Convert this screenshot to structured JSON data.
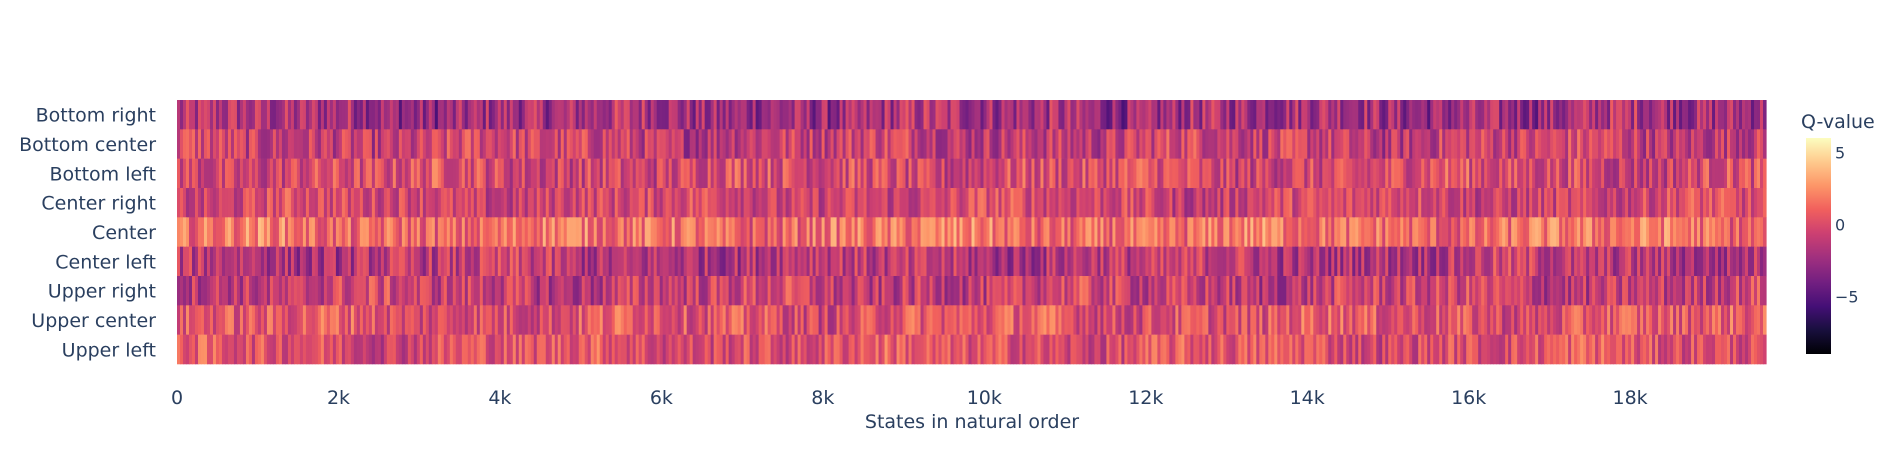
{
  "chart_data": {
    "type": "heatmap",
    "title": "",
    "xlabel": "States in natural order",
    "ylabel": "",
    "xlim": [
      0,
      19683
    ],
    "x_ticks": [
      {
        "value": 0,
        "label": "0"
      },
      {
        "value": 2000,
        "label": "2k"
      },
      {
        "value": 4000,
        "label": "4k"
      },
      {
        "value": 6000,
        "label": "6k"
      },
      {
        "value": 8000,
        "label": "8k"
      },
      {
        "value": 10000,
        "label": "10k"
      },
      {
        "value": 12000,
        "label": "12k"
      },
      {
        "value": 14000,
        "label": "14k"
      },
      {
        "value": 16000,
        "label": "16k"
      },
      {
        "value": 18000,
        "label": "18k"
      }
    ],
    "rows": [
      "Upper left",
      "Upper center",
      "Upper right",
      "Center left",
      "Center",
      "Center right",
      "Bottom left",
      "Bottom center",
      "Bottom right"
    ],
    "colorbar": {
      "title": "Q-value",
      "min": -9,
      "max": 6,
      "ticks": [
        {
          "value": 5,
          "label": "5"
        },
        {
          "value": 0,
          "label": "0"
        },
        {
          "value": -5,
          "label": "−5"
        }
      ],
      "colorscale": "magma"
    },
    "cell_values_note": "",
    "row_profiles": [
      {
        "row": "Bottom right",
        "mean": -2.2,
        "spread": 3.2
      },
      {
        "row": "Bottom center",
        "mean": -0.8,
        "spread": 2.8
      },
      {
        "row": "Bottom left",
        "mean": -0.2,
        "spread": 2.8
      },
      {
        "row": "Center right",
        "mean": -0.4,
        "spread": 2.4
      },
      {
        "row": "Center",
        "mean": 1.4,
        "spread": 2.6
      },
      {
        "row": "Center left",
        "mean": -1.4,
        "spread": 2.8
      },
      {
        "row": "Upper right",
        "mean": -0.9,
        "spread": 2.8
      },
      {
        "row": "Upper center",
        "mean": 0.3,
        "spread": 2.6
      },
      {
        "row": "Upper left",
        "mean": 0.2,
        "spread": 2.4
      }
    ]
  }
}
